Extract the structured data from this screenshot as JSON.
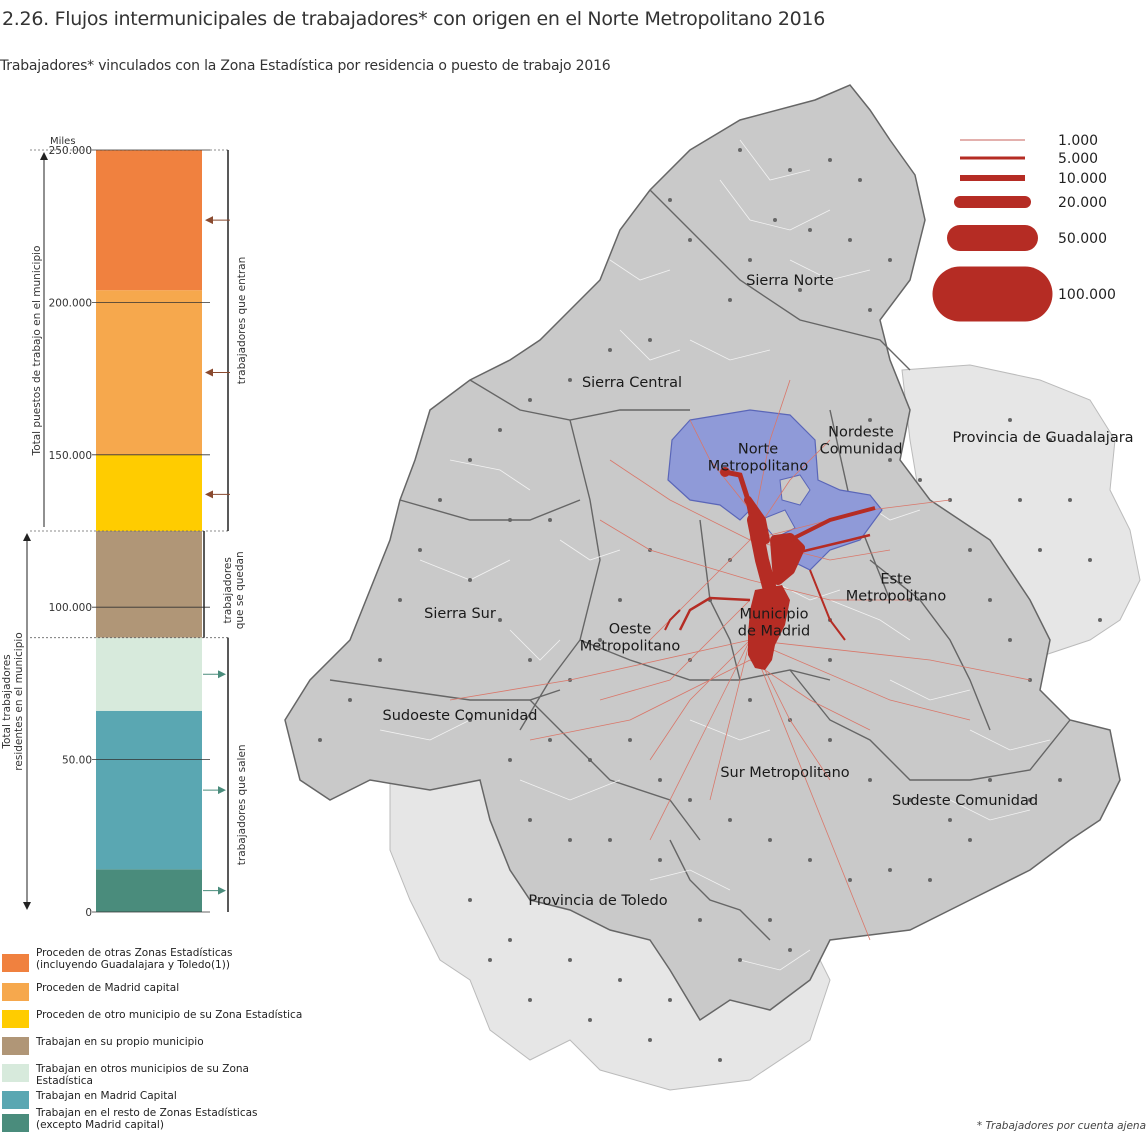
{
  "header": {
    "title": "2.26. Flujos intermunicipales de trabajadores* con origen en el Norte Metropolitano 2016",
    "subtitle": "Trabajadores* vinculados con la Zona Estadística por residencia o puesto de trabajo 2016"
  },
  "footnote": "* Trabajadores por cuenta ajena",
  "chart_data": {
    "type": "bar",
    "unit_label": "Miles",
    "y_ticks": [
      "250.000",
      "200.000",
      "150.000",
      "100.000",
      "50.00",
      "0"
    ],
    "y_tick_values": [
      250000,
      200000,
      150000,
      100000,
      50000,
      0
    ],
    "ylim": [
      0,
      250000
    ],
    "stacks": [
      {
        "name": "Total puestos de trabajo en el municipio",
        "segments": [
          {
            "label": "Trabajan en su propio municipio",
            "from": 90000,
            "to": 125000,
            "color": "#b09677"
          },
          {
            "label": "Proceden de otro municipio de su Zona Estadística",
            "from": 125000,
            "to": 150000,
            "color": "#ffcc00"
          },
          {
            "label": "Proceden de Madrid capital",
            "from": 150000,
            "to": 204000,
            "color": "#f6a84d"
          },
          {
            "label": "Proceden de otras Zonas Estadísticas (incluyendo Guadalajara y Toledo)",
            "from": 204000,
            "to": 250000,
            "color": "#f0813f"
          }
        ]
      },
      {
        "name": "Total trabajadores residentes en el municipio",
        "segments": [
          {
            "label": "Trabajan en el resto de Zonas Estadísticas (excepto Madrid capital)",
            "from": 0,
            "to": 14000,
            "color": "#4a8c7c"
          },
          {
            "label": "Trabajan en Madrid Capital",
            "from": 14000,
            "to": 66000,
            "color": "#5aa7b2"
          },
          {
            "label": "Trabajan en otros municipios de su Zona Estadística",
            "from": 66000,
            "to": 90000,
            "color": "#d7eadc"
          },
          {
            "label": "Trabajan en su propio municipio",
            "from": 90000,
            "to": 125000,
            "color": "#b09677"
          }
        ]
      }
    ],
    "axis_labels": {
      "left_upper": "Total puestos de trabajo en el municipio",
      "left_lower": "Total trabajadores\nresidentes en el municipio"
    },
    "bracket_labels": {
      "enter": "trabajadores que entran",
      "stay": "trabajadores\nque se quedan",
      "leave": "trabajadores que salen"
    }
  },
  "legend": [
    {
      "label": "Proceden de otras Zonas Estadísticas\n(incluyendo Guadalajara y Toledo(1))",
      "color": "#f0813f"
    },
    {
      "label": "Proceden de Madrid capital",
      "color": "#f6a84d"
    },
    {
      "label": "Proceden de otro municipio de su Zona Estadística",
      "color": "#ffcc00"
    },
    {
      "label": "Trabajan en su propio municipio",
      "color": "#b09677"
    },
    {
      "label": "Trabajan en otros municipios de su Zona Estadística",
      "color": "#d7eadc"
    },
    {
      "label": "Trabajan en Madrid Capital",
      "color": "#5aa7b2"
    },
    {
      "label": "Trabajan en el resto de Zonas Estadísticas\n (excepto Madrid capital)",
      "color": "#4a8c7c"
    }
  ],
  "map": {
    "regions": [
      "Sierra Norte",
      "Sierra Central",
      "Norte\nMetropolitano",
      "Nordeste\nComunidad",
      "Provincia de Guadalajara",
      "Este\nMetropolitano",
      "Sierra Sur",
      "Oeste\nMetropolitano",
      "Municipio\nde Madrid",
      "Sudoeste Comunidad",
      "Sur Metropolitano",
      "Sudeste Comunidad",
      "Provincia de Toledo"
    ],
    "flow_legend": [
      "1.000",
      "5.000",
      "10.000",
      "20.000",
      "50.000",
      "100.000"
    ],
    "colors": {
      "flow": "#b52c24",
      "highlight": "#8f9ad8",
      "region": "#c9c9c9",
      "province": "#e6e6e6",
      "border": "#666666"
    }
  }
}
